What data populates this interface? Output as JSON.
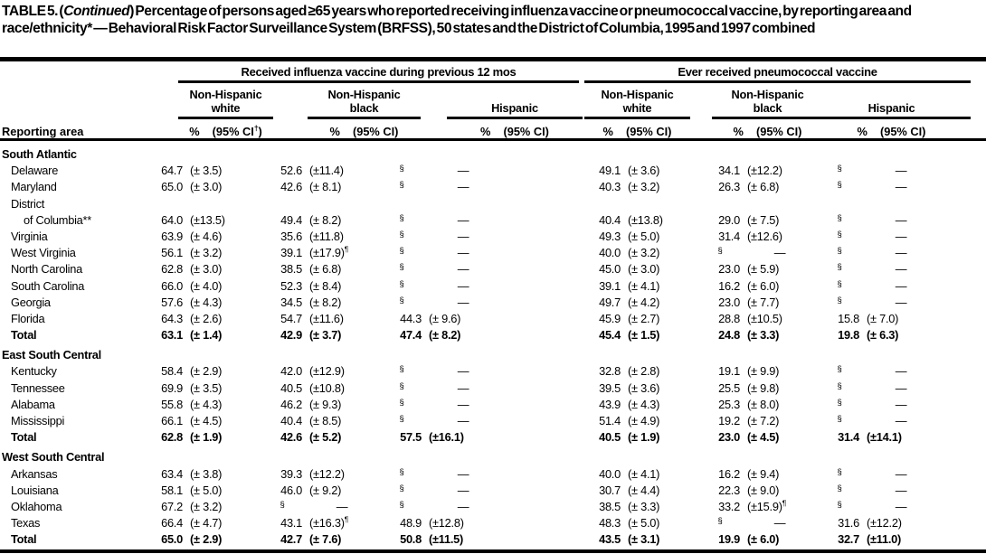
{
  "title": {
    "pre": "TABLE 5. (",
    "italic": "Continued",
    "post": ") Percentage of persons aged ≥65 years who reported receiving influenza vaccine or pneumococcal vaccine, by reporting area and race/ethnicity* — Behavioral Risk Factor Surveillance System (BRFSS), 50 states and the District of Columbia, 1995 and 1997 combined"
  },
  "columns": {
    "stub": "Reporting area",
    "groups": [
      {
        "label": "Received influenza vaccine during previous 12 mos",
        "subgroups": [
          {
            "l1": "Non-Hispanic",
            "l2": "white",
            "pct": "%",
            "ci": "(95% CI†)"
          },
          {
            "l1": "Non-Hispanic",
            "l2": "black",
            "pct": "%",
            "ci": "(95% CI)"
          },
          {
            "l1": "",
            "l2": "Hispanic",
            "pct": "%",
            "ci": "(95% CI)"
          }
        ]
      },
      {
        "label": "Ever received pneumococcal vaccine",
        "subgroups": [
          {
            "l1": "Non-Hispanic",
            "l2": "white",
            "pct": "%",
            "ci": "(95% CI)"
          },
          {
            "l1": "Non-Hispanic",
            "l2": "black",
            "pct": "%",
            "ci": "(95% CI)"
          },
          {
            "l1": "",
            "l2": "Hispanic",
            "pct": "%",
            "ci": "(95% CI)"
          }
        ]
      }
    ]
  },
  "rows": [
    {
      "type": "section",
      "label": "South Atlantic"
    },
    {
      "type": "state",
      "label": "Delaware",
      "cells": [
        "64.7",
        "(± 3.5)",
        "52.6",
        "(±11.4)",
        "§",
        "—",
        "49.1",
        "(± 3.6)",
        "34.1",
        "(±12.2)",
        "§",
        "—"
      ]
    },
    {
      "type": "state",
      "label": "Maryland",
      "cells": [
        "65.0",
        "(± 3.0)",
        "42.6",
        "(± 8.1)",
        "§",
        "—",
        "40.3",
        "(± 3.2)",
        "26.3",
        "(± 6.8)",
        "§",
        "—"
      ]
    },
    {
      "type": "state",
      "label": "District"
    },
    {
      "type": "state2",
      "label": "of Columbia**",
      "cells": [
        "64.0",
        "(±13.5)",
        "49.4",
        "(± 8.2)",
        "§",
        "—",
        "40.4",
        "(±13.8)",
        "29.0",
        "(± 7.5)",
        "§",
        "—"
      ]
    },
    {
      "type": "state",
      "label": "Virginia",
      "cells": [
        "63.9",
        "(± 4.6)",
        "35.6",
        "(±11.8)",
        "§",
        "—",
        "49.3",
        "(± 5.0)",
        "31.4",
        "(±12.6)",
        "§",
        "—"
      ]
    },
    {
      "type": "state",
      "label": "West Virginia",
      "cells": [
        "56.1",
        "(± 3.2)",
        "39.1",
        "(±17.9)¶",
        "§",
        "—",
        "40.0",
        "(± 3.2)",
        "§",
        "—",
        "§",
        "—"
      ]
    },
    {
      "type": "state",
      "label": "North Carolina",
      "cells": [
        "62.8",
        "(± 3.0)",
        "38.5",
        "(± 6.8)",
        "§",
        "—",
        "45.0",
        "(± 3.0)",
        "23.0",
        "(± 5.9)",
        "§",
        "—"
      ]
    },
    {
      "type": "state",
      "label": "South Carolina",
      "cells": [
        "66.0",
        "(± 4.0)",
        "52.3",
        "(± 8.4)",
        "§",
        "—",
        "39.1",
        "(± 4.1)",
        "16.2",
        "(± 6.0)",
        "§",
        "—"
      ]
    },
    {
      "type": "state",
      "label": "Georgia",
      "cells": [
        "57.6",
        "(± 4.3)",
        "34.5",
        "(± 8.2)",
        "§",
        "—",
        "49.7",
        "(± 4.2)",
        "23.0",
        "(± 7.7)",
        "§",
        "—"
      ]
    },
    {
      "type": "state",
      "label": "Florida",
      "cells": [
        "64.3",
        "(± 2.6)",
        "54.7",
        "(±11.6)",
        "44.3",
        "(± 9.6)",
        "45.9",
        "(± 2.7)",
        "28.8",
        "(±10.5)",
        "15.8",
        "(± 7.0)"
      ]
    },
    {
      "type": "total",
      "label": "Total",
      "cells": [
        "63.1",
        "(± 1.4)",
        "42.9",
        "(± 3.7)",
        "47.4",
        "(± 8.2)",
        "45.4",
        "(± 1.5)",
        "24.8",
        "(± 3.3)",
        "19.8",
        "(± 6.3)"
      ]
    },
    {
      "type": "section",
      "label": "East South Central"
    },
    {
      "type": "state",
      "label": "Kentucky",
      "cells": [
        "58.4",
        "(± 2.9)",
        "42.0",
        "(±12.9)",
        "§",
        "—",
        "32.8",
        "(± 2.8)",
        "19.1",
        "(± 9.9)",
        "§",
        "—"
      ]
    },
    {
      "type": "state",
      "label": "Tennessee",
      "cells": [
        "69.9",
        "(± 3.5)",
        "40.5",
        "(±10.8)",
        "§",
        "—",
        "39.5",
        "(± 3.6)",
        "25.5",
        "(± 9.8)",
        "§",
        "—"
      ]
    },
    {
      "type": "state",
      "label": "Alabama",
      "cells": [
        "55.8",
        "(± 4.3)",
        "46.2",
        "(± 9.3)",
        "§",
        "—",
        "43.9",
        "(± 4.3)",
        "25.3",
        "(± 8.0)",
        "§",
        "—"
      ]
    },
    {
      "type": "state",
      "label": "Mississippi",
      "cells": [
        "66.1",
        "(± 4.5)",
        "40.4",
        "(± 8.5)",
        "§",
        "—",
        "51.4",
        "(± 4.9)",
        "19.2",
        "(± 7.2)",
        "§",
        "—"
      ]
    },
    {
      "type": "total",
      "label": "Total",
      "cells": [
        "62.8",
        "(± 1.9)",
        "42.6",
        "(± 5.2)",
        "57.5",
        "(±16.1)",
        "40.5",
        "(± 1.9)",
        "23.0",
        "(± 4.5)",
        "31.4",
        "(±14.1)"
      ]
    },
    {
      "type": "section",
      "label": "West South Central"
    },
    {
      "type": "state",
      "label": "Arkansas",
      "cells": [
        "63.4",
        "(± 3.8)",
        "39.3",
        "(±12.2)",
        "§",
        "—",
        "40.0",
        "(± 4.1)",
        "16.2",
        "(± 9.4)",
        "§",
        "—"
      ]
    },
    {
      "type": "state",
      "label": "Louisiana",
      "cells": [
        "58.1",
        "(± 5.0)",
        "46.0",
        "(± 9.2)",
        "§",
        "—",
        "30.7",
        "(± 4.4)",
        "22.3",
        "(± 9.0)",
        "§",
        "—"
      ]
    },
    {
      "type": "state",
      "label": "Oklahoma",
      "cells": [
        "67.2",
        "(± 3.2)",
        "§",
        "—",
        "§",
        "—",
        "38.5",
        "(± 3.3)",
        "33.2",
        "(±15.9)¶",
        "§",
        "—"
      ]
    },
    {
      "type": "state",
      "label": "Texas",
      "cells": [
        "66.4",
        "(± 4.7)",
        "43.1",
        "(±16.3)¶",
        "48.9",
        "(±12.8)",
        "48.3",
        "(± 5.0)",
        "§",
        "—",
        "31.6",
        "(±12.2)"
      ]
    },
    {
      "type": "total",
      "label": "Total",
      "cells": [
        "65.0",
        "(± 2.9)",
        "42.7",
        "(± 7.6)",
        "50.8",
        "(±11.5)",
        "43.5",
        "(± 3.1)",
        "19.9",
        "(± 6.0)",
        "32.7",
        "(±11.0)"
      ]
    }
  ]
}
